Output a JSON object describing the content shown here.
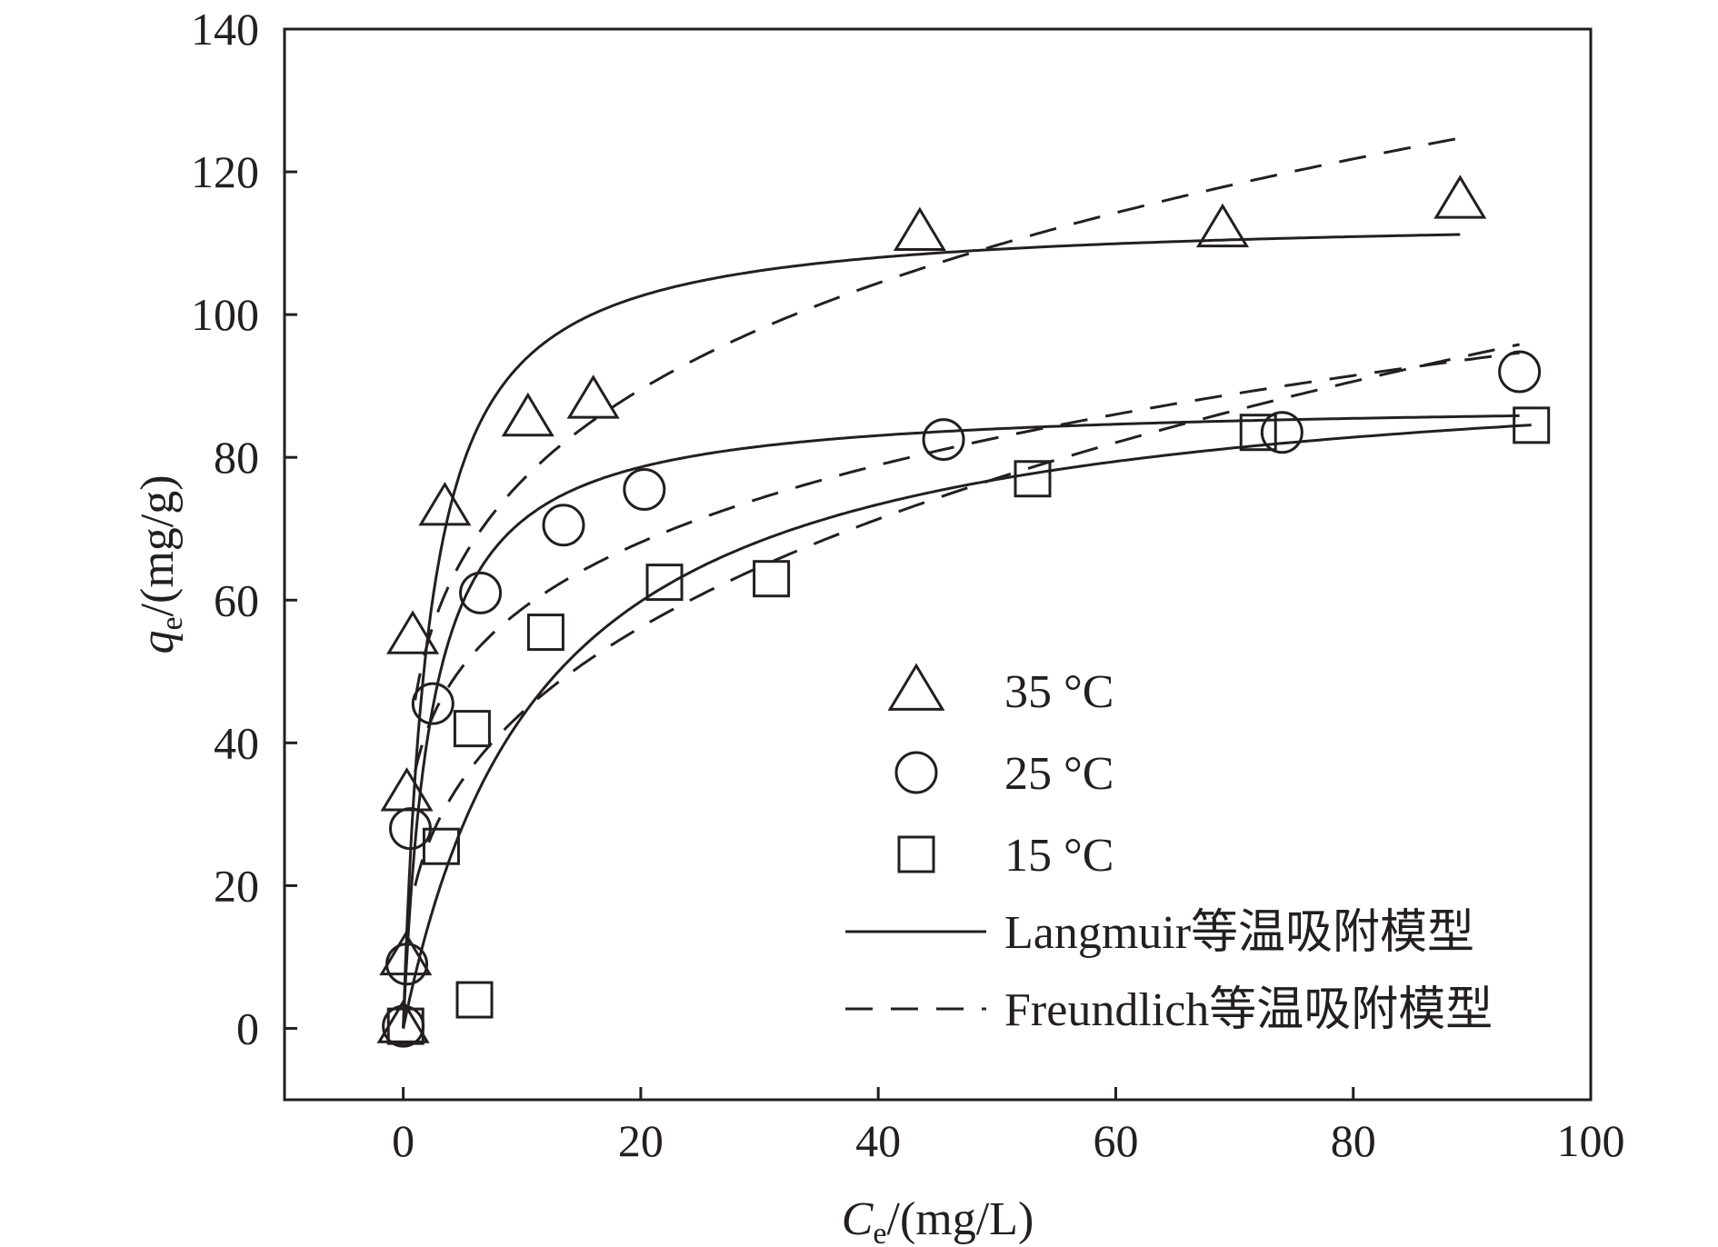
{
  "chart_data": {
    "type": "scatter",
    "x_axis": {
      "label_main": "C",
      "label_sub": "e",
      "label_unit": "/(mg/L)",
      "range": [
        -10,
        100
      ],
      "ticks": [
        0,
        20,
        40,
        60,
        80,
        100
      ],
      "tick_labels": [
        "0",
        "20",
        "40",
        "60",
        "80",
        "100"
      ]
    },
    "y_axis": {
      "label_main": "q",
      "label_sub": "e",
      "label_unit": "/(mg/g)",
      "range": [
        -10,
        140
      ],
      "ticks": [
        0,
        20,
        40,
        60,
        80,
        100,
        120,
        140
      ],
      "tick_labels": [
        "0",
        "20",
        "40",
        "60",
        "80",
        "100",
        "120",
        "140"
      ]
    },
    "grid": false,
    "legend_position": "bottom-right",
    "series": [
      {
        "name": "35 °C",
        "marker": "triangle",
        "points": [
          [
            0.0,
            0.5
          ],
          [
            0.2,
            10
          ],
          [
            0.3,
            33
          ],
          [
            0.8,
            55
          ],
          [
            3.5,
            73
          ],
          [
            10.5,
            85.5
          ],
          [
            16,
            88
          ],
          [
            43.5,
            111.5
          ],
          [
            69,
            112
          ],
          [
            89,
            116
          ]
        ]
      },
      {
        "name": "25 °C",
        "marker": "circle",
        "points": [
          [
            0.0,
            0.3
          ],
          [
            0.3,
            9
          ],
          [
            0.6,
            28
          ],
          [
            2.5,
            45.5
          ],
          [
            6.5,
            61
          ],
          [
            13.5,
            70.5
          ],
          [
            20.3,
            75.5
          ],
          [
            45.5,
            82.5
          ],
          [
            74,
            83.5
          ],
          [
            94,
            92
          ]
        ]
      },
      {
        "name": "15 °C",
        "marker": "square",
        "points": [
          [
            0.2,
            0.3
          ],
          [
            3.2,
            25.5
          ],
          [
            5.8,
            42
          ],
          [
            6,
            4
          ],
          [
            12,
            55.5
          ],
          [
            22,
            62.5
          ],
          [
            31,
            63
          ],
          [
            53,
            77
          ],
          [
            72,
            83.5
          ],
          [
            95,
            84.5
          ]
        ]
      }
    ],
    "models": [
      {
        "name": "Langmuir等温吸附模型",
        "style": "solid",
        "curves": [
          {
            "for": "35 °C",
            "qm": 114,
            "KL": 0.45,
            "x_end": 89
          },
          {
            "for": "25 °C",
            "qm": 88,
            "KL": 0.42,
            "x_end": 94
          },
          {
            "for": "15 °C",
            "qm": 95,
            "KL": 0.085,
            "x_end": 95
          }
        ]
      },
      {
        "name": "Freundlich等温吸附模型",
        "style": "dashed",
        "curves": [
          {
            "for": "35 °C",
            "KF": 46,
            "n": 4.5,
            "x_start": 1,
            "x_end": 89
          },
          {
            "for": "25 °C",
            "KF": 36,
            "n": 4.7,
            "x_start": 1,
            "x_end": 94
          },
          {
            "for": "15 °C",
            "KF": 20,
            "n": 2.9,
            "x_start": 1,
            "x_end": 94
          }
        ]
      }
    ]
  }
}
